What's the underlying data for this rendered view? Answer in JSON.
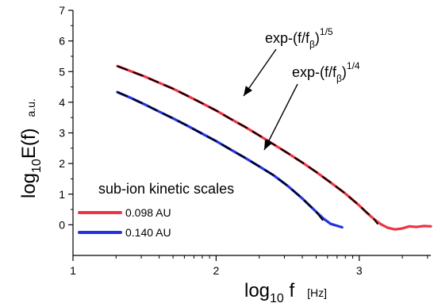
{
  "chart_data": {
    "type": "line",
    "title": "",
    "xlabel": {
      "main": "log",
      "sub": "10",
      "var": " f",
      "unit": "[Hz]"
    },
    "ylabel": {
      "main": "log",
      "sub": "10",
      "var": "E(f)",
      "unit": "a.u."
    },
    "xlim": [
      1,
      3.5
    ],
    "ylim": [
      -1,
      7
    ],
    "x_ticks": [
      1,
      2,
      3
    ],
    "y_ticks": [
      0,
      1,
      2,
      3,
      4,
      5,
      6,
      7
    ],
    "x_scale": "log-like minor ticks",
    "grid": false,
    "legend": {
      "title": "sub-ion kinetic scales",
      "placement": "bottom-left",
      "entries": [
        {
          "label": "0.098 AU",
          "color": "#ee3344"
        },
        {
          "label": "0.140 AU",
          "color": "#2233dd"
        }
      ]
    },
    "series": [
      {
        "name": "0.098 AU",
        "color": "#ee3344",
        "x": [
          1.31,
          1.4,
          1.5,
          1.6,
          1.7,
          1.8,
          1.9,
          2.0,
          2.1,
          2.2,
          2.3,
          2.4,
          2.5,
          2.6,
          2.7,
          2.8,
          2.9,
          3.0,
          3.05,
          3.1,
          3.15,
          3.2,
          3.25,
          3.3,
          3.35,
          3.4,
          3.45,
          3.5
        ],
        "values": [
          5.18,
          5.02,
          4.84,
          4.64,
          4.44,
          4.21,
          3.97,
          3.73,
          3.46,
          3.2,
          2.92,
          2.63,
          2.34,
          2.04,
          1.72,
          1.38,
          1.03,
          0.63,
          0.4,
          0.2,
          0.02,
          -0.1,
          -0.15,
          -0.12,
          -0.05,
          -0.07,
          -0.04,
          -0.05
        ]
      },
      {
        "name": "0.140 AU",
        "color": "#2233dd",
        "x": [
          1.31,
          1.4,
          1.5,
          1.6,
          1.7,
          1.8,
          1.9,
          2.0,
          2.1,
          2.2,
          2.3,
          2.4,
          2.5,
          2.6,
          2.7,
          2.75,
          2.8,
          2.85,
          2.88
        ],
        "values": [
          4.33,
          4.15,
          3.93,
          3.7,
          3.47,
          3.23,
          2.98,
          2.73,
          2.46,
          2.19,
          1.91,
          1.62,
          1.27,
          0.87,
          0.42,
          0.2,
          0.03,
          -0.04,
          -0.08
        ]
      }
    ],
    "fits": [
      {
        "label": {
          "main": "exp-(f/f",
          "sub": "β",
          "close": ")",
          "sup": "1/5"
        },
        "color": "#000000",
        "dash": "long-dash",
        "x": [
          1.31,
          1.4,
          1.5,
          1.6,
          1.7,
          1.8,
          1.9,
          2.0,
          2.1,
          2.2,
          2.3,
          2.4,
          2.5,
          2.6,
          2.7,
          2.8,
          2.9,
          3.0,
          3.05,
          3.1,
          3.13
        ],
        "values": [
          5.18,
          5.02,
          4.84,
          4.64,
          4.44,
          4.21,
          3.97,
          3.73,
          3.46,
          3.2,
          2.92,
          2.63,
          2.34,
          2.04,
          1.72,
          1.38,
          1.03,
          0.63,
          0.42,
          0.2,
          0.02
        ]
      },
      {
        "label": {
          "main": "exp-(f/f",
          "sub": "β",
          "close": ")",
          "sup": "1/4"
        },
        "color": "#000000",
        "dash": "long-dash",
        "x": [
          1.31,
          1.4,
          1.5,
          1.6,
          1.7,
          1.8,
          1.9,
          2.0,
          2.1,
          2.2,
          2.3,
          2.4,
          2.5,
          2.6,
          2.7,
          2.75
        ],
        "values": [
          4.33,
          4.15,
          3.93,
          3.7,
          3.47,
          3.23,
          2.98,
          2.73,
          2.46,
          2.19,
          1.91,
          1.62,
          1.27,
          0.87,
          0.42,
          0.12
        ]
      }
    ]
  }
}
